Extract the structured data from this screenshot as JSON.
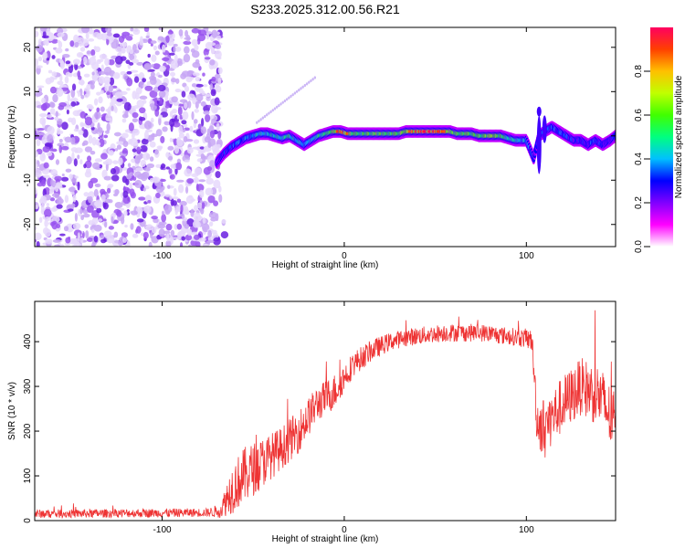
{
  "figure": {
    "title": "S233.2025.312.00.56.R21"
  },
  "chart_data": [
    {
      "type": "heatmap",
      "xlabel": "Height of straight line (km)",
      "ylabel": "Frequency (Hz)",
      "xlim": [
        -170,
        149
      ],
      "ylim": [
        -25,
        24.5
      ],
      "xticks": [
        -100,
        0,
        100
      ],
      "yticks": [
        -20,
        -10,
        0,
        10,
        20
      ],
      "colorbar": {
        "label": "Normalized spectral amplitude",
        "range": [
          0,
          1
        ],
        "ticks": [
          0.0,
          0.2,
          0.4,
          0.6,
          0.8
        ],
        "tick_labels": [
          "0.0",
          "0.2",
          "0.4",
          "0.6",
          "0.8"
        ],
        "colors": [
          "#ffffff",
          "#ff00ff",
          "#8000ff",
          "#0000ff",
          "#00c0ff",
          "#00ff80",
          "#40ff00",
          "#c0ff00",
          "#ffc000",
          "#ff4000",
          "#ff0060"
        ]
      },
      "noise_region_x": [
        -170,
        -68
      ],
      "track": {
        "x": [
          -70,
          -66,
          -62,
          -58,
          -54,
          -50,
          -46,
          -42,
          -38,
          -34,
          -30,
          -26,
          -22,
          -18,
          -14,
          -10,
          -6,
          -2,
          2,
          6,
          10,
          14,
          18,
          22,
          26,
          30,
          34,
          38,
          42,
          46,
          50,
          54,
          58,
          62,
          66,
          70,
          74,
          78,
          82,
          86,
          90,
          94,
          98,
          100,
          104,
          107,
          110,
          114,
          118,
          122,
          126,
          130,
          134,
          138,
          142,
          146,
          149
        ],
        "y": [
          -6,
          -4,
          -2.5,
          -1.5,
          -0.5,
          0,
          0.5,
          0.5,
          0,
          -0.5,
          0,
          -1,
          -2,
          -1,
          0,
          0.5,
          1,
          1,
          0.5,
          0.5,
          0.5,
          0.5,
          0.5,
          0.5,
          0.5,
          0.5,
          1,
          1,
          1,
          1,
          1,
          1,
          1,
          0.5,
          0.5,
          0.5,
          0,
          0,
          0,
          0,
          -0.5,
          -1,
          -1,
          -1,
          -5,
          0,
          1,
          2,
          1,
          0,
          -1,
          -1,
          -2,
          -1,
          -2,
          -1,
          0
        ],
        "amplitude": [
          0.3,
          0.35,
          0.4,
          0.45,
          0.45,
          0.5,
          0.55,
          0.5,
          0.55,
          0.55,
          0.6,
          0.5,
          0.5,
          0.55,
          0.6,
          0.65,
          0.75,
          0.9,
          0.85,
          0.7,
          0.65,
          0.7,
          0.75,
          0.7,
          0.7,
          0.75,
          0.8,
          0.85,
          0.9,
          0.95,
          0.9,
          0.85,
          0.8,
          0.75,
          0.7,
          0.7,
          0.7,
          0.75,
          0.8,
          0.7,
          0.6,
          0.55,
          0.5,
          0.45,
          0.35,
          0.4,
          0.45,
          0.45,
          0.4,
          0.4,
          0.35,
          0.35,
          0.35,
          0.4,
          0.35,
          0.35,
          0.35
        ]
      }
    },
    {
      "type": "line",
      "xlabel": "Height of straight line (km)",
      "ylabel": "SNR (10 * v/v)",
      "xlim": [
        -170,
        149
      ],
      "ylim": [
        0,
        490
      ],
      "xticks": [
        -100,
        0,
        100
      ],
      "yticks": [
        0,
        100,
        200,
        300,
        400
      ],
      "color": "#ee3333",
      "envelope": {
        "x": [
          -170,
          -75,
          -68,
          -62,
          -55,
          -45,
          -35,
          -25,
          -15,
          -5,
          0,
          5,
          15,
          25,
          35,
          45,
          55,
          65,
          75,
          85,
          95,
          103,
          106,
          110,
          120,
          130,
          140,
          149
        ],
        "y": [
          15,
          18,
          22,
          70,
          100,
          130,
          160,
          200,
          260,
          290,
          320,
          350,
          380,
          400,
          410,
          415,
          420,
          420,
          420,
          415,
          410,
          405,
          220,
          210,
          260,
          300,
          280,
          210
        ],
        "spread": [
          12,
          12,
          20,
          70,
          80,
          70,
          60,
          60,
          50,
          50,
          40,
          35,
          30,
          25,
          25,
          25,
          25,
          25,
          25,
          25,
          25,
          30,
          80,
          80,
          80,
          80,
          90,
          90
        ]
      }
    }
  ]
}
